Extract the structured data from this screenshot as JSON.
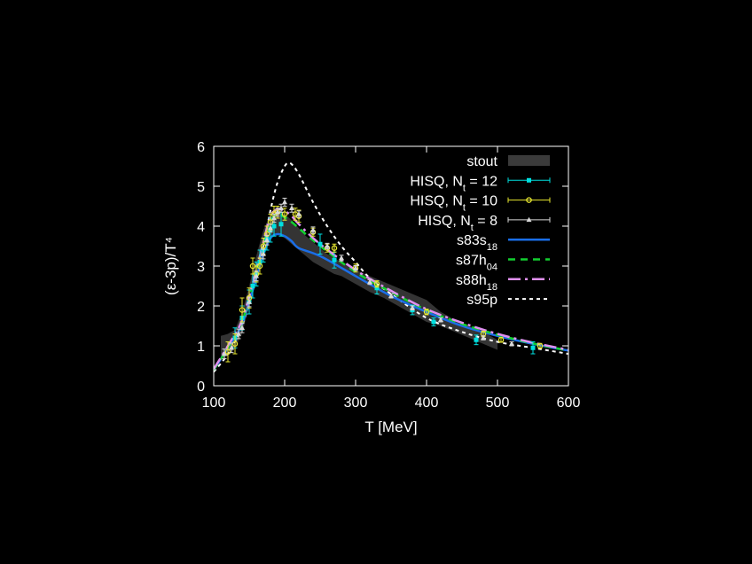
{
  "chart_data": {
    "type": "line",
    "xlabel": "T [MeV]",
    "ylabel": "(ε-3p)/T⁴",
    "xlim": [
      100,
      600
    ],
    "ylim": [
      0,
      6
    ],
    "xticks": [
      "100",
      "200",
      "300",
      "400",
      "500",
      "600"
    ],
    "yticks": [
      "0",
      "1",
      "2",
      "3",
      "4",
      "5",
      "6"
    ],
    "grid": false,
    "legend_position": "top-right",
    "colors": {
      "background": "#000000",
      "axes": "#ffffff",
      "stout": "#3a3a3a",
      "hisq12": "#00e0e0",
      "hisq10": "#e8e830",
      "hisq8": "#d8d8d8",
      "s83s18": "#1a6ee8",
      "s87h04": "#12d030",
      "s88h18": "#e090f0",
      "s95p": "#ffffff"
    },
    "legend": [
      {
        "key": "stout",
        "base": "stout",
        "sub": "",
        "tail": "",
        "style": "band"
      },
      {
        "key": "hisq12",
        "base": "HISQ, N",
        "sub": "t",
        "tail": " = 12",
        "style": "err",
        "marker": "square"
      },
      {
        "key": "hisq10",
        "base": "HISQ, N",
        "sub": "t",
        "tail": " = 10",
        "style": "err",
        "marker": "circle"
      },
      {
        "key": "hisq8",
        "base": "HISQ, N",
        "sub": "t",
        "tail": " = 8",
        "style": "err",
        "marker": "triangle"
      },
      {
        "key": "s83s18",
        "base": "s83s",
        "sub": "18",
        "tail": "",
        "style": "solid"
      },
      {
        "key": "s87h04",
        "base": "s87h",
        "sub": "04",
        "tail": "",
        "style": "dashed"
      },
      {
        "key": "s88h18",
        "base": "s88h",
        "sub": "18",
        "tail": "",
        "style": "dashdot"
      },
      {
        "key": "s95p",
        "base": "s95p",
        "sub": "",
        "tail": "",
        "style": "dotted"
      }
    ],
    "stout_band": {
      "x": [
        110,
        120,
        130,
        140,
        150,
        160,
        170,
        180,
        190,
        200,
        210,
        220,
        230,
        240,
        250,
        260,
        270,
        280,
        300,
        320,
        340,
        360,
        380,
        400,
        420,
        440,
        460,
        480,
        500
      ],
      "lower": [
        0.7,
        0.75,
        0.95,
        1.3,
        2.0,
        2.75,
        3.4,
        3.75,
        3.8,
        3.7,
        3.55,
        3.4,
        3.25,
        3.1,
        3.0,
        2.9,
        2.8,
        2.75,
        2.55,
        2.35,
        2.2,
        2.0,
        1.8,
        1.6,
        1.5,
        1.35,
        1.2,
        1.05,
        0.9
      ],
      "upper": [
        1.25,
        1.3,
        1.4,
        1.85,
        2.5,
        3.25,
        3.9,
        4.3,
        4.4,
        4.3,
        4.15,
        3.95,
        3.75,
        3.6,
        3.45,
        3.3,
        3.2,
        3.1,
        2.9,
        2.75,
        2.6,
        2.45,
        2.3,
        2.15,
        1.85,
        1.65,
        1.5,
        1.35,
        1.15
      ]
    },
    "series": [
      {
        "key": "s95p",
        "x": [
          100,
          120,
          140,
          160,
          170,
          180,
          190,
          200,
          205,
          210,
          220,
          240,
          260,
          280,
          300,
          320,
          350,
          400,
          450,
          500,
          550,
          600
        ],
        "y": [
          0.35,
          0.8,
          1.5,
          2.7,
          3.5,
          4.4,
          5.1,
          5.5,
          5.58,
          5.55,
          5.3,
          4.6,
          4.0,
          3.5,
          3.1,
          2.7,
          2.3,
          1.7,
          1.35,
          1.1,
          0.95,
          0.8
        ]
      },
      {
        "key": "s83s18",
        "x": [
          100,
          120,
          140,
          160,
          170,
          180,
          190,
          200,
          210,
          220,
          250,
          300,
          350,
          400,
          450,
          500,
          550,
          600
        ],
        "y": [
          0.4,
          0.95,
          1.55,
          2.7,
          3.3,
          3.7,
          3.8,
          3.75,
          3.62,
          3.45,
          3.25,
          2.75,
          2.25,
          1.85,
          1.5,
          1.25,
          1.05,
          0.88
        ]
      },
      {
        "key": "s87h04",
        "x": [
          100,
          120,
          140,
          160,
          170,
          180,
          190,
          200,
          210,
          220,
          250,
          300,
          350,
          400,
          450,
          500,
          550,
          600
        ],
        "y": [
          0.4,
          0.95,
          1.6,
          2.85,
          3.5,
          4.1,
          4.3,
          4.22,
          4.1,
          3.95,
          3.5,
          2.85,
          2.35,
          1.9,
          1.55,
          1.28,
          1.06,
          0.88
        ]
      },
      {
        "key": "s88h18",
        "x": [
          100,
          120,
          140,
          160,
          170,
          180,
          190,
          200,
          210,
          220,
          250,
          300,
          350,
          400,
          450,
          500,
          550,
          600
        ],
        "y": [
          0.42,
          1.0,
          1.65,
          2.9,
          3.6,
          4.25,
          4.42,
          4.38,
          4.25,
          4.05,
          3.55,
          2.9,
          2.38,
          1.92,
          1.58,
          1.3,
          1.08,
          0.9
        ]
      }
    ],
    "points": [
      {
        "key": "hisq12",
        "x": [
          130,
          140,
          150,
          155,
          160,
          165,
          170,
          175,
          180,
          185,
          195,
          250,
          270,
          330,
          380,
          410,
          470,
          550
        ],
        "y": [
          1.2,
          1.7,
          2.1,
          2.5,
          2.8,
          3.1,
          3.4,
          3.7,
          3.9,
          4.0,
          4.05,
          3.55,
          3.15,
          2.45,
          1.9,
          1.6,
          1.15,
          0.95
        ],
        "err": [
          0.25,
          0.3,
          0.3,
          0.3,
          0.3,
          0.3,
          0.3,
          0.3,
          0.3,
          0.25,
          0.3,
          0.25,
          0.2,
          0.15,
          0.12,
          0.1,
          0.12,
          0.15
        ]
      },
      {
        "key": "hisq10",
        "x": [
          120,
          130,
          140,
          150,
          155,
          160,
          165,
          170,
          175,
          180,
          185,
          190,
          200,
          215,
          220,
          240,
          260,
          270,
          300,
          330,
          400,
          480,
          505,
          560
        ],
        "y": [
          0.85,
          1.05,
          1.9,
          2.2,
          3.0,
          2.8,
          3.0,
          3.5,
          3.8,
          4.1,
          4.3,
          4.35,
          4.3,
          4.3,
          4.25,
          3.85,
          3.45,
          3.45,
          2.95,
          2.55,
          1.85,
          1.3,
          1.15,
          1.0
        ],
        "err": [
          0.25,
          0.25,
          0.3,
          0.25,
          0.2,
          0.2,
          0.2,
          0.2,
          0.2,
          0.2,
          0.2,
          0.15,
          0.15,
          0.15,
          0.15,
          0.1,
          0.1,
          0.1,
          0.1,
          0.08,
          0.07,
          0.07,
          0.06,
          0.06
        ]
      },
      {
        "key": "hisq8",
        "x": [
          115,
          125,
          135,
          140,
          150,
          160,
          170,
          175,
          180,
          185,
          190,
          195,
          200,
          210,
          220,
          240,
          260,
          280,
          300,
          320,
          350,
          380,
          420,
          480,
          520
        ],
        "y": [
          0.8,
          0.95,
          1.3,
          1.45,
          2.1,
          2.75,
          3.3,
          3.65,
          3.95,
          4.2,
          4.35,
          4.45,
          4.6,
          4.45,
          4.3,
          3.9,
          3.5,
          3.2,
          2.95,
          2.6,
          2.25,
          1.95,
          1.65,
          1.2,
          1.05
        ],
        "err": [
          0.12,
          0.12,
          0.12,
          0.12,
          0.12,
          0.12,
          0.12,
          0.12,
          0.1,
          0.1,
          0.1,
          0.1,
          0.1,
          0.1,
          0.08,
          0.08,
          0.07,
          0.07,
          0.06,
          0.06,
          0.05,
          0.05,
          0.05,
          0.05,
          0.05
        ]
      }
    ]
  }
}
